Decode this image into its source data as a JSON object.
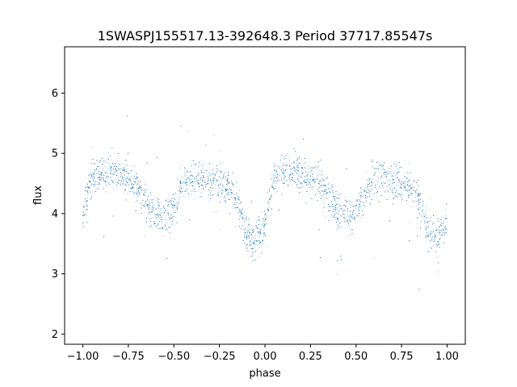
{
  "chart_data": {
    "type": "scatter",
    "title": "1SWASPJ155517.13-392648.3 Period 37717.85547s",
    "xlabel": "phase",
    "ylabel": "flux",
    "xlim": [
      -1.1,
      1.1
    ],
    "ylim": [
      1.83,
      6.77
    ],
    "x_ticks": [
      -1.0,
      -0.75,
      -0.5,
      -0.25,
      0.0,
      0.25,
      0.5,
      0.75,
      1.0
    ],
    "x_tick_labels": [
      "−1.00",
      "−0.75",
      "−0.50",
      "−0.25",
      "0.00",
      "0.25",
      "0.50",
      "0.75",
      "1.00"
    ],
    "y_ticks": [
      2,
      3,
      4,
      5,
      6
    ],
    "y_tick_labels": [
      "2",
      "3",
      "4",
      "5",
      "6"
    ],
    "grid": false,
    "legend": "none",
    "point_color": "#1f77b4",
    "series": [
      {
        "x": [
          -1.0,
          -0.95,
          -0.9,
          -0.85,
          -0.8,
          -0.75,
          -0.7,
          -0.65,
          -0.6,
          -0.55,
          -0.5,
          -0.45,
          -0.4,
          -0.35,
          -0.3,
          -0.25,
          -0.2,
          -0.15,
          -0.1,
          -0.05,
          0.0,
          0.05,
          0.1,
          0.15,
          0.2,
          0.25,
          0.3,
          0.35,
          0.4,
          0.45,
          0.5,
          0.55,
          0.6,
          0.65,
          0.7,
          0.75,
          0.8,
          0.85,
          0.9,
          0.95,
          1.0
        ],
        "y": [
          4.0,
          4.6,
          4.65,
          4.7,
          4.65,
          4.6,
          4.45,
          4.15,
          4.0,
          4.0,
          4.1,
          4.5,
          4.6,
          4.6,
          4.55,
          4.5,
          4.45,
          4.25,
          3.65,
          3.55,
          3.75,
          4.55,
          4.7,
          4.7,
          4.65,
          4.6,
          4.55,
          4.25,
          4.05,
          4.0,
          4.05,
          4.35,
          4.55,
          4.6,
          4.55,
          4.5,
          4.45,
          4.2,
          3.65,
          3.55,
          3.9
        ]
      }
    ]
  }
}
